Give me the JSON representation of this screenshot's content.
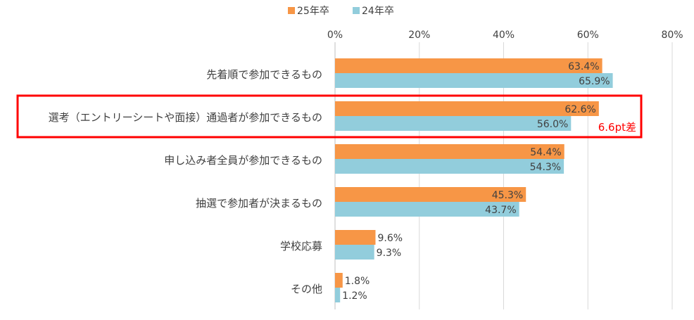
{
  "chart_data": {
    "type": "bar",
    "orientation": "horizontal",
    "categories": [
      "先着順で参加できるもの",
      "選考（エントリーシートや面接）通過者が参加できるもの",
      "申し込み者全員が参加できるもの",
      "抽選で参加者が決まるもの",
      "学校応募",
      "その他"
    ],
    "series": [
      {
        "name": "25年卒",
        "values": [
          63.4,
          62.6,
          54.4,
          45.3,
          9.6,
          1.8
        ],
        "labels": [
          "63.4%",
          "62.6%",
          "54.4%",
          "45.3%",
          "9.6%",
          "1.8%"
        ]
      },
      {
        "name": "24年卒",
        "values": [
          65.9,
          56.0,
          54.3,
          43.7,
          9.3,
          1.2
        ],
        "labels": [
          "65.9%",
          "56.0%",
          "54.3%",
          "43.7%",
          "9.3%",
          "1.2%"
        ]
      }
    ],
    "xlim": [
      0,
      80
    ],
    "xticks": [
      0,
      20,
      40,
      60,
      80
    ],
    "xtick_labels": [
      "0%",
      "20%",
      "40%",
      "60%",
      "80%"
    ],
    "legend_position": "top-center",
    "grid": true,
    "annotation": {
      "category_index": 1,
      "text": "6.6pt差",
      "style": "red box highlight"
    }
  },
  "colors": {
    "series_25": "#F79646",
    "series_24": "#92CDDC",
    "grid": "#D9D9D9",
    "text": "#404040",
    "highlight": "#FF0000"
  }
}
